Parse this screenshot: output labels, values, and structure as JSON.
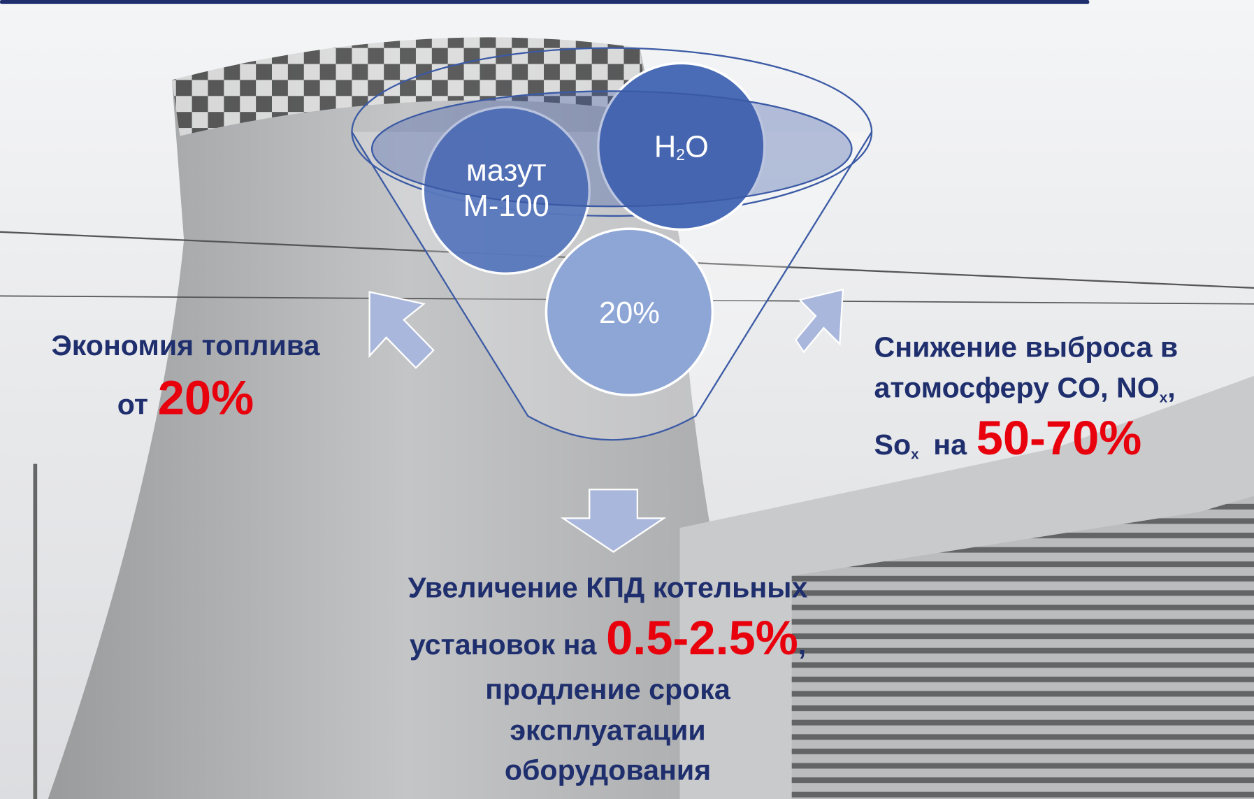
{
  "funnel": {
    "fuel": [
      "мазут",
      "М-100"
    ],
    "water": {
      "main": "H",
      "sub": "2",
      "end": "O"
    },
    "additive": "20%"
  },
  "left": {
    "title": "Экономия топлива",
    "prefix": "от",
    "value": "20%"
  },
  "right": {
    "line1": "Снижение выброса в",
    "line2": "атомосферу CO, NO",
    "line2_sub": "x",
    "line2_end": ",",
    "line3": "So",
    "line3_sub": "x",
    "line3_mid": "на",
    "value": "50-70%"
  },
  "bottom": {
    "line1": "Увеличение КПД котельных",
    "line2": "установок на",
    "value": "0.5-2.5%",
    "line2_end": ",",
    "line3": "продление срока",
    "line4": "эксплуатации",
    "line5": "оборудования"
  }
}
